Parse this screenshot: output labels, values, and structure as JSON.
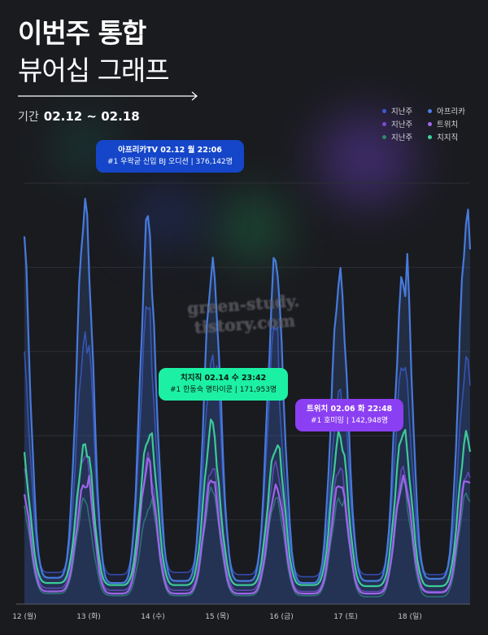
{
  "header": {
    "title_main": "이번주 통합",
    "title_sub": "뷰어십 그래프",
    "period_label": "기간",
    "period_value": "02.12 ~ 02.18"
  },
  "legend": {
    "rows": [
      {
        "prev": "지난주",
        "current": "아프리카",
        "prev_color": "#3b5bd6",
        "current_color": "#4a7ee6"
      },
      {
        "prev": "지난주",
        "current": "트위치",
        "prev_color": "#7d4ad1",
        "current_color": "#a467f0"
      },
      {
        "prev": "지난주",
        "current": "치지직",
        "prev_color": "#2c8a6a",
        "current_color": "#3ed39b"
      }
    ]
  },
  "tooltips": {
    "afreeca": {
      "line1": "아프리카TV 02.12 월 22:06",
      "line2": "#1 우왁굳 신입 BJ 오디션 | 376,142명"
    },
    "chzzk": {
      "line1": "치지직 02.14 수 23:42",
      "line2": "#1 한동숙 명타이쿤 | 171,953명"
    },
    "twitch": {
      "line1": "트위치 02.06 화 22:48",
      "line2": "#1 호미밍 | 142,948명"
    }
  },
  "watermark": {
    "line1": "green-study.",
    "line2": "tistory.com"
  },
  "chart_data": {
    "type": "line",
    "x": [
      "12 (월)",
      "13 (화)",
      "14 (수)",
      "15 (목)",
      "16 (금)",
      "17 (토)",
      "18 (일)"
    ],
    "ylim": [
      0,
      400000
    ],
    "grid": true,
    "legend_position": "top-right",
    "series": [
      {
        "name": "아프리카",
        "color": "#4a7ee6",
        "peaks": [
          376142,
          370000,
          320000,
          330000,
          310000,
          310000,
          365000
        ],
        "troughs": [
          25000,
          20000,
          22000,
          22000,
          20000,
          22000,
          24000
        ]
      },
      {
        "name": "지난주 아프리카",
        "color": "#3b5bd6",
        "peaks": [
          250000,
          290000,
          230000,
          270000,
          200000,
          230000,
          230000
        ],
        "troughs": [
          30000,
          28000,
          30000,
          28000,
          26000,
          28000,
          28000
        ]
      },
      {
        "name": "치지직",
        "color": "#3ed39b",
        "peaks": [
          150000,
          160000,
          171953,
          150000,
          160000,
          165000,
          160000
        ],
        "troughs": [
          20000,
          18000,
          18000,
          18000,
          18000,
          17000,
          17000
        ]
      },
      {
        "name": "지난주 치지직",
        "color": "#2c8a6a",
        "peaks": [
          100000,
          90000,
          110000,
          100000,
          100000,
          115000,
          105000
        ],
        "troughs": [
          10000,
          8000,
          8000,
          8000,
          8000,
          7000,
          7000
        ]
      },
      {
        "name": "트위치",
        "color": "#a467f0",
        "peaks": [
          115000,
          135000,
          120000,
          110000,
          115000,
          118000,
          120000
        ],
        "troughs": [
          12000,
          10000,
          10000,
          10000,
          10000,
          10000,
          11000
        ]
      },
      {
        "name": "지난주 트위치",
        "color": "#7d4ad1",
        "peaks": [
          142948,
          140000,
          130000,
          132000,
          130000,
          128000,
          125000
        ],
        "troughs": [
          15000,
          13000,
          13000,
          13000,
          12000,
          12000,
          12000
        ]
      }
    ]
  }
}
